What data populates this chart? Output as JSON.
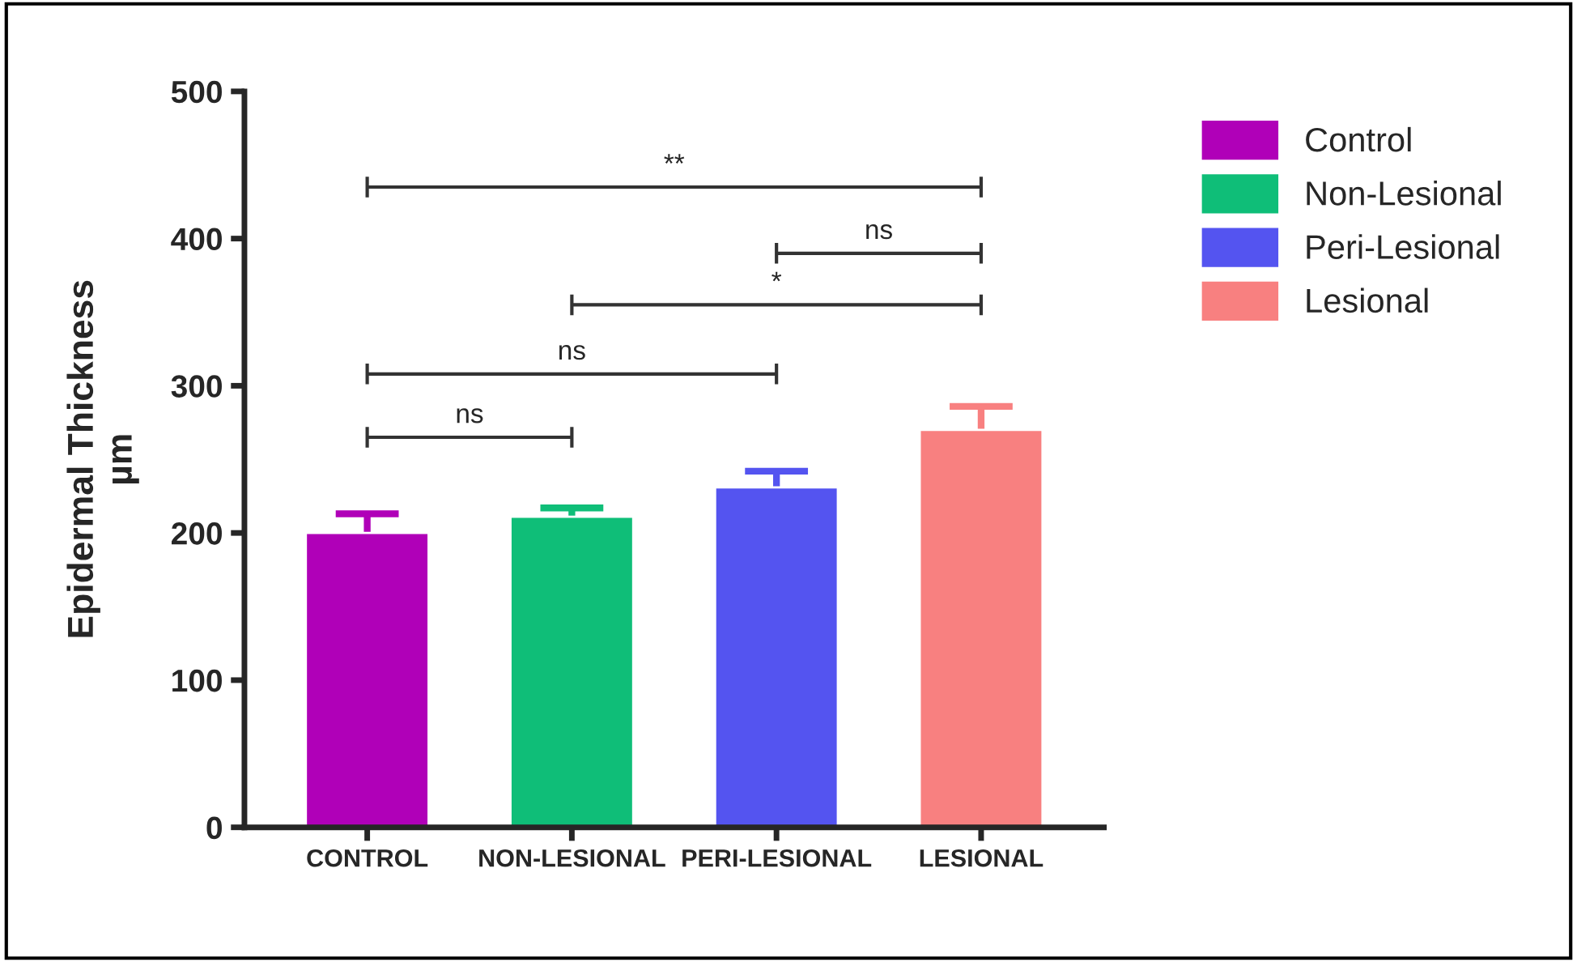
{
  "chart_data": {
    "type": "bar",
    "ylabel": "Epidermal Thickness\nµm",
    "categories": [
      "CONTROL",
      "NON-LESIONAL",
      "PERI-LESIONAL",
      "LESIONAL"
    ],
    "series": [
      {
        "name": "Control",
        "color": "#b000b8",
        "values": [
          200,
          null,
          null,
          null
        ],
        "errors": [
          13,
          null,
          null,
          null
        ]
      },
      {
        "name": "Non-Lesional",
        "color": "#0fbe78",
        "values": [
          null,
          211,
          null,
          null
        ],
        "errors": [
          null,
          6,
          null,
          null
        ]
      },
      {
        "name": "Peri-Lesional",
        "color": "#5454f0",
        "values": [
          null,
          null,
          231,
          null
        ],
        "errors": [
          null,
          null,
          11,
          null
        ]
      },
      {
        "name": "Lesional",
        "color": "#f88080",
        "values": [
          null,
          null,
          null,
          270
        ],
        "errors": [
          null,
          null,
          null,
          16
        ]
      }
    ],
    "ylim": [
      0,
      500
    ],
    "yticks": [
      0,
      100,
      200,
      300,
      400,
      500
    ],
    "grid": false,
    "legend": "right",
    "annotations": [
      "**",
      "ns",
      "*",
      "ns",
      "ns"
    ]
  }
}
